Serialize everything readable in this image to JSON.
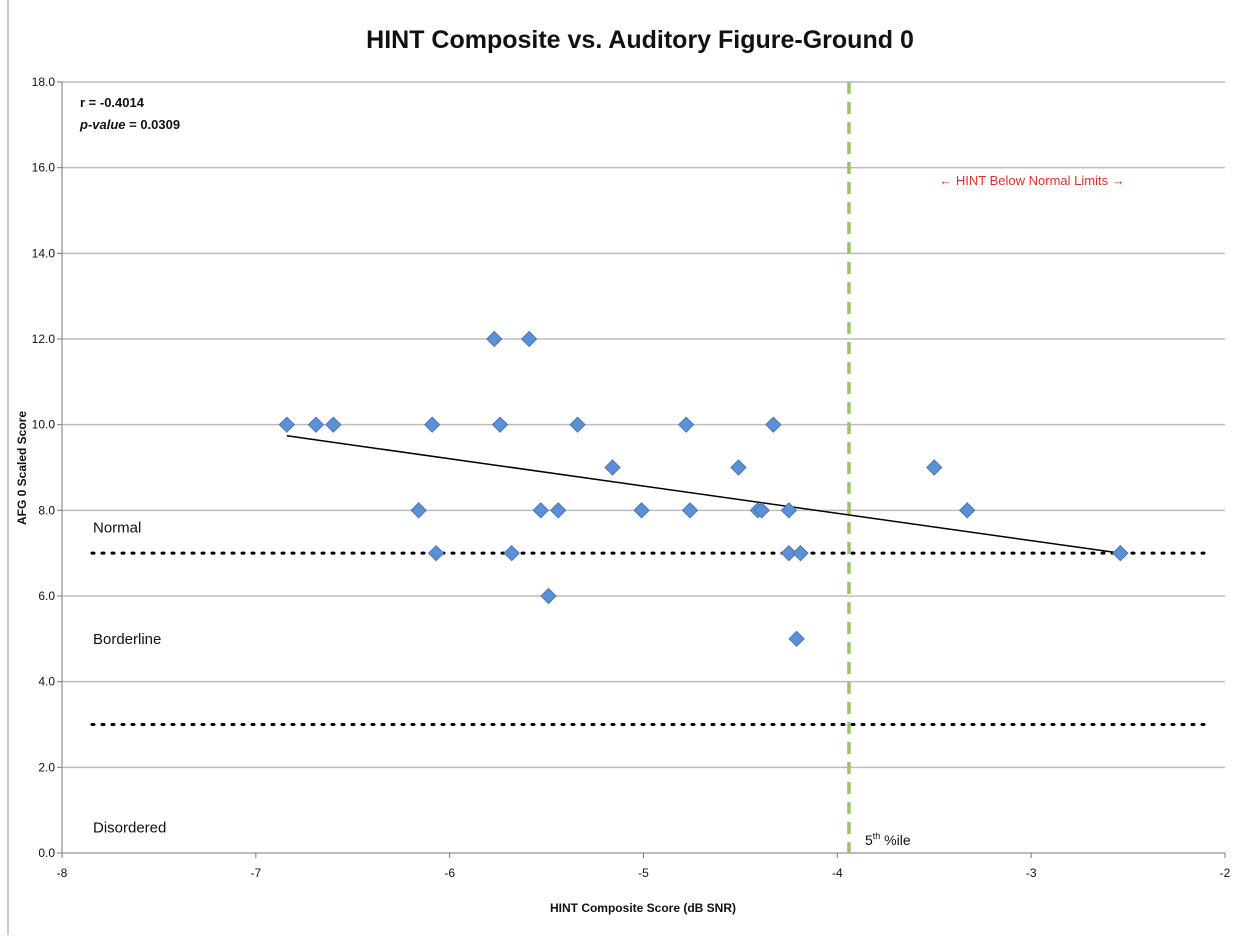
{
  "chart_data": {
    "type": "scatter",
    "title": "HINT Composite vs. Auditory Figure-Ground 0",
    "x_label": "HINT Composite Score (dB SNR)",
    "y_label": "AFG 0 Scaled Score",
    "xlim": [
      -8,
      -2
    ],
    "ylim": [
      0,
      18
    ],
    "xticks": [
      -8,
      -7,
      -6,
      -5,
      -4,
      -3,
      -2
    ],
    "yticks": [
      {
        "value": 0,
        "label": "0.0"
      },
      {
        "value": 2,
        "label": "2.0"
      },
      {
        "value": 4,
        "label": "4.0"
      },
      {
        "value": 6,
        "label": "6.0"
      },
      {
        "value": 8,
        "label": "8.0"
      },
      {
        "value": 10,
        "label": "10.0"
      },
      {
        "value": 12,
        "label": "12.0"
      },
      {
        "value": 14,
        "label": "14.0"
      },
      {
        "value": 16,
        "label": "16.0"
      },
      {
        "value": 18,
        "label": "18.0"
      }
    ],
    "grid": true,
    "color": "#5b8fd6",
    "x": [
      -6.84,
      -6.69,
      -6.6,
      -6.09,
      -5.74,
      -5.34,
      -4.78,
      -4.33,
      -5.77,
      -5.59,
      -5.16,
      -4.51,
      -3.5,
      -6.16,
      -5.53,
      -5.44,
      -5.01,
      -4.76,
      -4.41,
      -4.39,
      -4.25,
      -3.33,
      -6.07,
      -5.68,
      -4.25,
      -4.19,
      -2.54,
      -5.49,
      -4.21
    ],
    "values": [
      10,
      10,
      10,
      10,
      10,
      10,
      10,
      10,
      12,
      12,
      9,
      9,
      9,
      8,
      8,
      8,
      8,
      8,
      8,
      8,
      8,
      8,
      7,
      7,
      7,
      7,
      7,
      6,
      5
    ],
    "trendline": {
      "x": [
        -6.84,
        -2.54
      ],
      "y": [
        9.74,
        7.0
      ],
      "color": "#000000"
    },
    "reference_hlines": [
      7,
      3
    ],
    "reference_vline": {
      "value": -3.94,
      "color": "#9dc168"
    },
    "stats": {
      "r": "r = -0.4014",
      "p_italic": "p-value",
      "p_rest": " = 0.0309"
    },
    "range_note": {
      "text": "← HINT Below Normal Limits →",
      "color": "#e0302c"
    },
    "zones": [
      {
        "label": "Normal",
        "y": 7.6
      },
      {
        "label": "Borderline",
        "y": 5.0
      },
      {
        "label": "Disordered",
        "y": 0.6
      }
    ],
    "percentile_label": {
      "base": "5",
      "sup": "th",
      "rest": " %ile"
    }
  }
}
